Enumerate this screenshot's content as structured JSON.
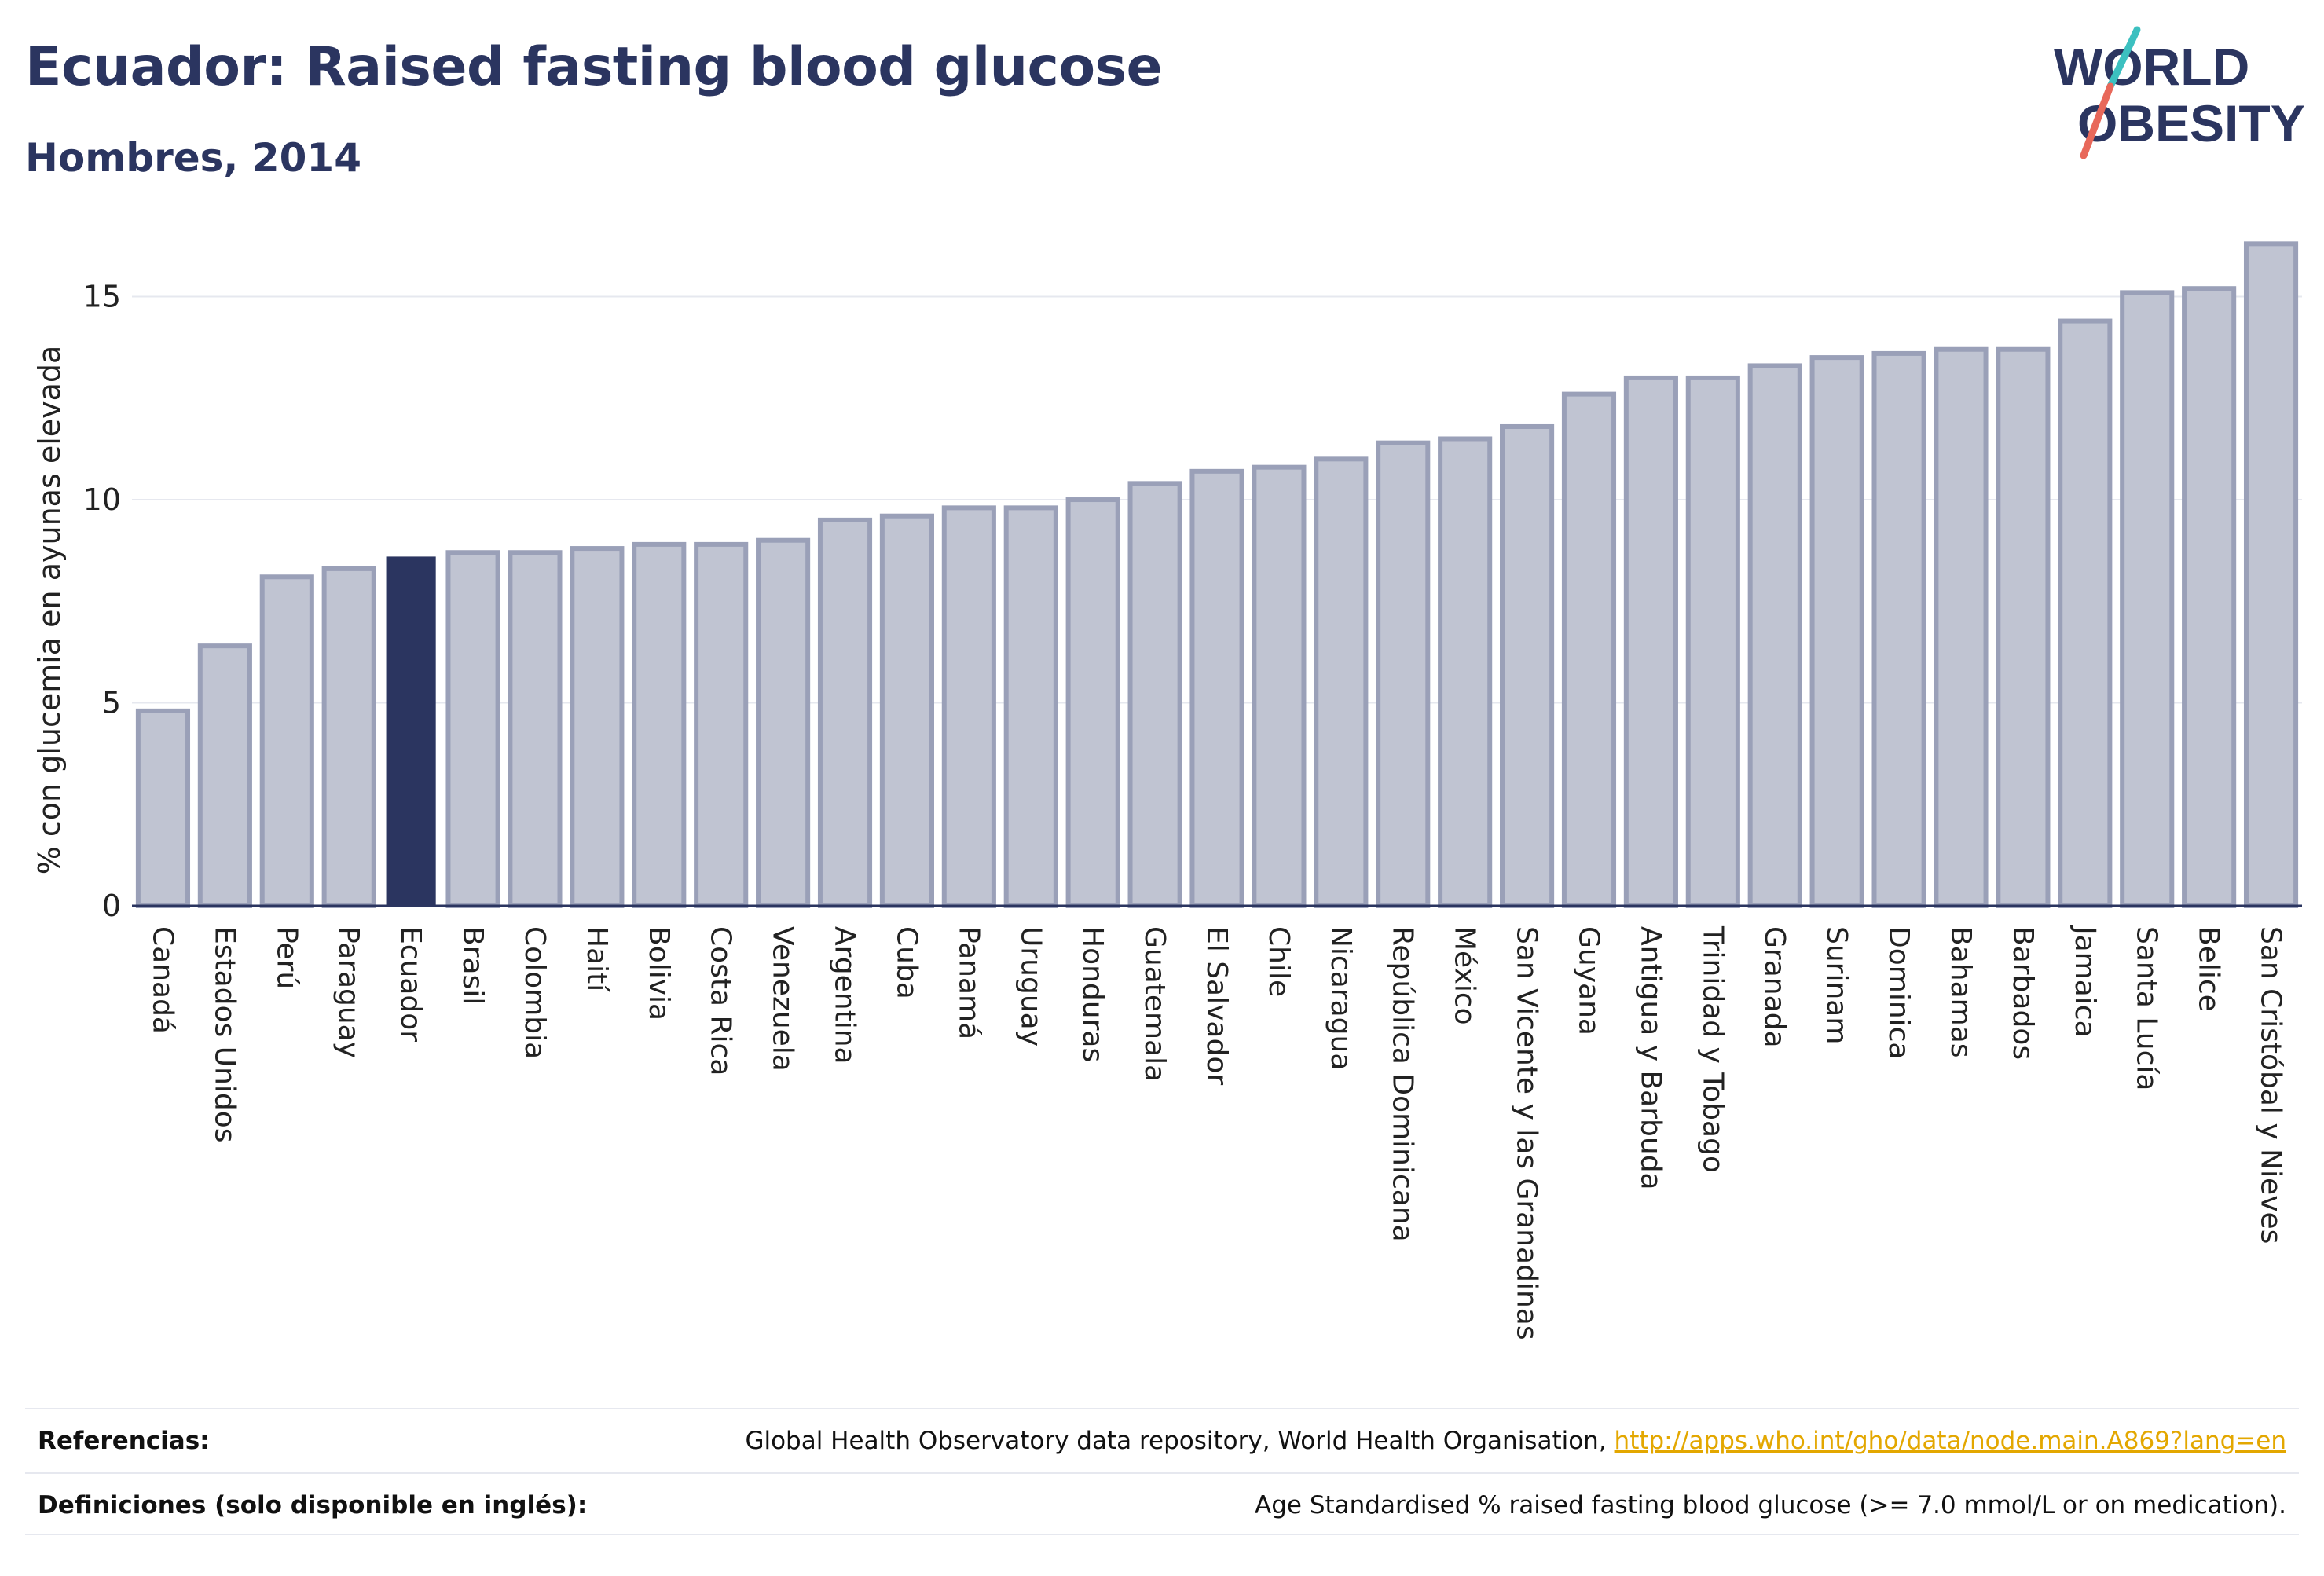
{
  "header": {
    "title": "Ecuador: Raised fasting blood glucose",
    "subtitle": "Hombres, 2014"
  },
  "logo": {
    "line1": "WORLD",
    "line2": "OBESITY",
    "colors": {
      "text": "#2b3560",
      "slash_top": "#3cc0c0",
      "slash_bottom": "#e8685a"
    }
  },
  "chart_data": {
    "type": "bar",
    "title": "Ecuador: Raised fasting blood glucose",
    "subtitle": "Hombres, 2014",
    "xlabel": "",
    "ylabel": "% con glucemia en ayunas elevada",
    "ylim": [
      0,
      16.5
    ],
    "yticks": [
      0,
      5,
      10,
      15
    ],
    "grid": true,
    "highlight": "Ecuador",
    "colors": {
      "bar": "#c0c4d2",
      "bar_edge": "#9aa0b8",
      "highlight": "#2b3560",
      "grid": "#e6e8ef",
      "axis": "#2b3560"
    },
    "categories": [
      "Canadá",
      "Estados Unidos",
      "Perú",
      "Paraguay",
      "Ecuador",
      "Brasil",
      "Colombia",
      "Haití",
      "Bolivia",
      "Costa Rica",
      "Venezuela",
      "Argentina",
      "Cuba",
      "Panamá",
      "Uruguay",
      "Honduras",
      "Guatemala",
      "El Salvador",
      "Chile",
      "Nicaragua",
      "República Dominicana",
      "México",
      "San Vicente y las Granadinas",
      "Guyana",
      "Antigua y Barbuda",
      "Trinidad y Tobago",
      "Granada",
      "Surinam",
      "Dominica",
      "Bahamas",
      "Barbados",
      "Jamaica",
      "Santa Lucía",
      "Belice",
      "San Cristóbal y Nieves"
    ],
    "values": [
      4.8,
      6.4,
      8.1,
      8.3,
      8.6,
      8.7,
      8.7,
      8.8,
      8.9,
      8.9,
      9.0,
      9.5,
      9.6,
      9.8,
      9.8,
      10.0,
      10.4,
      10.7,
      10.8,
      11.0,
      11.4,
      11.5,
      11.8,
      12.6,
      13.0,
      13.0,
      13.3,
      13.5,
      13.6,
      13.7,
      13.7,
      14.4,
      15.1,
      15.2,
      16.3
    ]
  },
  "footer": {
    "references_label": "Referencias:",
    "references_text": "Global Health Observatory data repository, World Health Organisation,",
    "references_link": "http://apps.who.int/gho/data/node.main.A869?lang=en",
    "definitions_label": "Definiciones (solo disponible en inglés):",
    "definitions_text": "Age Standardised % raised fasting blood glucose (>= 7.0 mmol/L or on medication)."
  }
}
